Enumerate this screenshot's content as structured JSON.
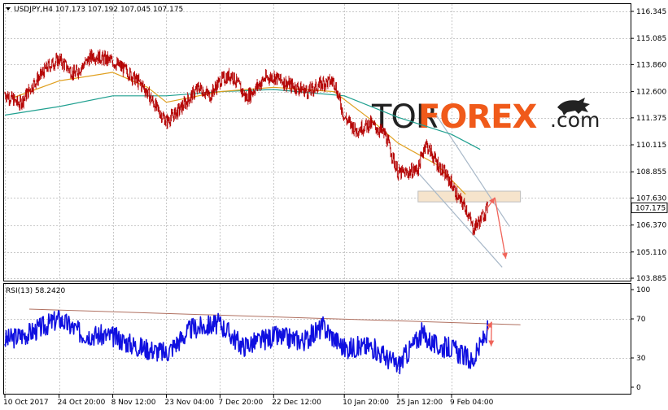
{
  "colors": {
    "background": "#ffffff",
    "grid": "#c8c8c8",
    "candle": "#b40000",
    "ma_fast": "#e0a020",
    "ma_slow": "#20a090",
    "channel": "#a8b8c8",
    "zone_fill": "#f6e4cc",
    "zone_stroke": "#bdbdbd",
    "arrow": "#f0645a",
    "rsi_line": "#1010e0",
    "rsi_trend": "#b07060",
    "logo_accent": "#f05a1a"
  },
  "symbol_info": {
    "dropdown_icon": "triangle-down-icon",
    "text": "USDJPY,H4  107.173 107.192 107.045 107.175"
  },
  "price_axis": {
    "labels": [
      "116.345",
      "115.085",
      "113.860",
      "112.600",
      "111.375",
      "110.115",
      "108.855",
      "107.630",
      "106.370",
      "105.110",
      "103.885"
    ],
    "current_price": "107.175"
  },
  "rsi_axis": {
    "title": "RSI(13) 58.2420",
    "labels": [
      "100",
      "70",
      "30",
      "0"
    ]
  },
  "time_axis": {
    "labels": [
      "10 Oct 2017",
      "24 Oct 20:00",
      "8 Nov 12:00",
      "23 Nov 04:00",
      "7 Dec 20:00",
      "22 Dec 12:00",
      "10 Jan 20:00",
      "25 Jan 12:00",
      "9 Feb 04:00"
    ]
  },
  "logo": {
    "part1": "TOR",
    "part2": "FOREX",
    "part3": ".com",
    "icon": "bull-icon"
  },
  "chart_data": {
    "type": "candlestick",
    "symbol": "USDJPY",
    "timeframe": "H4",
    "ylim": [
      103.885,
      116.345
    ],
    "rsi_ylim": [
      0,
      100
    ],
    "rsi_levels": [
      30,
      70
    ],
    "ohlc_last": {
      "open": 107.173,
      "high": 107.192,
      "low": 107.045,
      "close": 107.175
    },
    "close_path": [
      {
        "x": "10 Oct 2017",
        "y": 112.5
      },
      {
        "x": "14 Oct 2017",
        "y": 112.0
      },
      {
        "x": "18 Oct 2017",
        "y": 113.0
      },
      {
        "x": "22 Oct 2017",
        "y": 113.8
      },
      {
        "x": "24 Oct 20:00",
        "y": 114.1
      },
      {
        "x": "29 Oct 2017",
        "y": 113.4
      },
      {
        "x": "3 Nov 2017",
        "y": 114.3
      },
      {
        "x": "8 Nov 12:00",
        "y": 114.0
      },
      {
        "x": "12 Nov 2017",
        "y": 113.6
      },
      {
        "x": "17 Nov 2017",
        "y": 112.8
      },
      {
        "x": "21 Nov 2017",
        "y": 111.7
      },
      {
        "x": "23 Nov 04:00",
        "y": 111.2
      },
      {
        "x": "27 Nov 2017",
        "y": 111.8
      },
      {
        "x": "2 Dec 2017",
        "y": 112.8
      },
      {
        "x": "5 Dec 2017",
        "y": 112.4
      },
      {
        "x": "7 Dec 20:00",
        "y": 113.1
      },
      {
        "x": "11 Dec 2017",
        "y": 113.4
      },
      {
        "x": "15 Dec 2017",
        "y": 112.3
      },
      {
        "x": "20 Dec 2017",
        "y": 113.2
      },
      {
        "x": "22 Dec 12:00",
        "y": 113.3
      },
      {
        "x": "27 Dec 2017",
        "y": 112.9
      },
      {
        "x": "1 Jan 2018",
        "y": 112.6
      },
      {
        "x": "5 Jan 2018",
        "y": 113.0
      },
      {
        "x": "8 Jan 2018",
        "y": 113.1
      },
      {
        "x": "10 Jan 20:00",
        "y": 111.4
      },
      {
        "x": "14 Jan 2018",
        "y": 110.8
      },
      {
        "x": "18 Jan 2018",
        "y": 111.1
      },
      {
        "x": "22 Jan 2018",
        "y": 110.6
      },
      {
        "x": "25 Jan 12:00",
        "y": 108.8
      },
      {
        "x": "28 Jan 2018",
        "y": 108.8
      },
      {
        "x": "31 Jan 2018",
        "y": 109.0
      },
      {
        "x": "2 Feb 2018",
        "y": 110.2
      },
      {
        "x": "5 Feb 2018",
        "y": 109.3
      },
      {
        "x": "9 Feb 04:00",
        "y": 108.3
      },
      {
        "x": "11 Feb 2018",
        "y": 107.6
      },
      {
        "x": "13 Feb 2018",
        "y": 107.2
      },
      {
        "x": "15 Feb 2018",
        "y": 106.2
      },
      {
        "x": "17 Feb 2018",
        "y": 106.6
      },
      {
        "x": "19 Feb 2018",
        "y": 107.18
      }
    ],
    "ma_fast_path": [
      {
        "x": "12 Oct 2017",
        "y": 112.3
      },
      {
        "x": "24 Oct 20:00",
        "y": 113.1
      },
      {
        "x": "8 Nov 12:00",
        "y": 113.5
      },
      {
        "x": "18 Nov 2017",
        "y": 112.8
      },
      {
        "x": "23 Nov 04:00",
        "y": 112.1
      },
      {
        "x": "7 Dec 20:00",
        "y": 112.6
      },
      {
        "x": "22 Dec 12:00",
        "y": 112.8
      },
      {
        "x": "8 Jan 2018",
        "y": 112.6
      },
      {
        "x": "18 Jan 2018",
        "y": 111.3
      },
      {
        "x": "25 Jan 12:00",
        "y": 110.2
      },
      {
        "x": "5 Feb 2018",
        "y": 109.2
      },
      {
        "x": "13 Feb 2018",
        "y": 107.8
      }
    ],
    "ma_slow_path": [
      {
        "x": "10 Oct 2017",
        "y": 111.5
      },
      {
        "x": "24 Oct 20:00",
        "y": 111.9
      },
      {
        "x": "8 Nov 12:00",
        "y": 112.4
      },
      {
        "x": "23 Nov 04:00",
        "y": 112.4
      },
      {
        "x": "7 Dec 20:00",
        "y": 112.6
      },
      {
        "x": "22 Dec 12:00",
        "y": 112.7
      },
      {
        "x": "10 Jan 20:00",
        "y": 112.4
      },
      {
        "x": "25 Jan 12:00",
        "y": 111.4
      },
      {
        "x": "9 Feb 04:00",
        "y": 110.6
      },
      {
        "x": "17 Feb 2018",
        "y": 109.9
      }
    ],
    "rsi_path": [
      {
        "x": "10 Oct 2017",
        "y": 48
      },
      {
        "x": "17 Oct 2017",
        "y": 56
      },
      {
        "x": "24 Oct 20:00",
        "y": 70
      },
      {
        "x": "31 Oct 2017",
        "y": 55
      },
      {
        "x": "8 Nov 12:00",
        "y": 52
      },
      {
        "x": "15 Nov 2017",
        "y": 42
      },
      {
        "x": "23 Nov 04:00",
        "y": 35
      },
      {
        "x": "30 Nov 2017",
        "y": 60
      },
      {
        "x": "7 Dec 20:00",
        "y": 65
      },
      {
        "x": "14 Dec 2017",
        "y": 42
      },
      {
        "x": "22 Dec 12:00",
        "y": 52
      },
      {
        "x": "31 Dec 2017",
        "y": 48
      },
      {
        "x": "5 Jan 2018",
        "y": 62
      },
      {
        "x": "10 Jan 20:00",
        "y": 40
      },
      {
        "x": "18 Jan 2018",
        "y": 42
      },
      {
        "x": "25 Jan 12:00",
        "y": 22
      },
      {
        "x": "1 Feb 2018",
        "y": 55
      },
      {
        "x": "5 Feb 2018",
        "y": 42
      },
      {
        "x": "9 Feb 04:00",
        "y": 40
      },
      {
        "x": "15 Feb 2018",
        "y": 26
      },
      {
        "x": "19 Feb 2018",
        "y": 58.24
      }
    ],
    "resistance_zone": {
      "from": "31 Jan 2018",
      "to": "28 Feb 2018",
      "y_low": 107.45,
      "y_high": 107.95
    },
    "channel": {
      "upper": [
        {
          "x": "5 Feb 2018",
          "y": 111.5
        },
        {
          "x": "25 Feb 2018",
          "y": 106.3
        }
      ],
      "lower": [
        {
          "x": "29 Jan 2018",
          "y": 109.2
        },
        {
          "x": "23 Feb 2018",
          "y": 104.4
        }
      ]
    },
    "forecast": {
      "up_to": {
        "x": "21 Feb 2018",
        "y": 107.65
      },
      "down_to": {
        "x": "24 Feb 2018",
        "y": 104.8
      }
    }
  }
}
